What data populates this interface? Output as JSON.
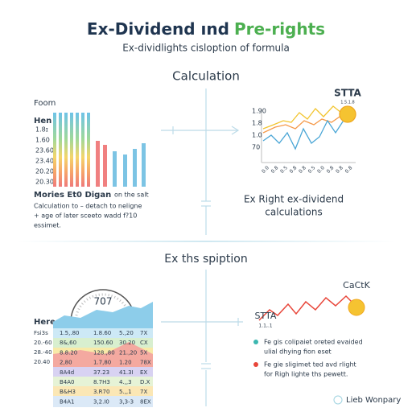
{
  "header": {
    "title_main": "Ex-Dividend ınd",
    "title_accent": "Pre-rights",
    "subtitle": "Ex-dividlights cisloption of formula"
  },
  "section1": {
    "heading": "Calculation",
    "left": {
      "label_top": "Foom",
      "label_head": "Hen",
      "row_labels": [
        "1.8ɪ",
        "1.60",
        "23.60",
        "23.40",
        "20.20",
        "20.30"
      ],
      "caption_bold": "Mories Et0 Digan",
      "caption_tail": "on the salt",
      "caption_lines": [
        "Calculation to – detach to neligne",
        "+ age of later sceeto wadd f?10",
        "essimet."
      ]
    },
    "right": {
      "badge": "STTA",
      "badge_sub": "1.5.1.8",
      "y_labels": [
        "1.90",
        "1.8",
        "1.0",
        "70"
      ],
      "x_labels": [
        "0.0",
        "0.8",
        "0.5",
        "0.8",
        "0.8",
        "0.5",
        "0.0",
        "0.8",
        "0.8",
        "0.8"
      ],
      "caption_lines": [
        "Ex Right ex-dividend",
        "calculations"
      ]
    }
  },
  "section2": {
    "heading": "Ex ths spiption",
    "gauge_value": "707",
    "table_label": "Here",
    "row_labels": [
      "Fsi3s",
      "20.-60",
      "28.-40",
      "20.40"
    ],
    "rows": [
      [
        "1.5,.80",
        "1.8.60",
        "5.,20",
        "7X"
      ],
      [
        "8&,60",
        "150.60",
        "30.20",
        "CX"
      ],
      [
        "8.8.20",
        "128.,80",
        "21.,20",
        "5X"
      ],
      [
        "2,80",
        "1.7,80",
        "1.20",
        "78X"
      ],
      [
        "8A4d",
        "37.23",
        "41.3I",
        "EX"
      ],
      [
        "B4A0",
        "8.7H3",
        "4.,,3",
        "D.X"
      ],
      [
        "B&H3",
        "3.R70",
        "5.,,1",
        "7X"
      ],
      [
        "B4A1",
        "3,2.I0",
        "3,3-3",
        "8EX"
      ]
    ],
    "right_badge": "CaCtK",
    "left_badge": "STTA",
    "left_badge_sub": "1.1,.1",
    "legend": [
      {
        "lines": [
          "Fe gis colipaiet oreted evaided",
          "ulial dhying fion eset"
        ]
      },
      {
        "lines": [
          "Fe gie sligimet ted avd rlight",
          "for Righ lighte ths pewett."
        ]
      }
    ]
  },
  "footer": {
    "brand": "Lieb Wonpary"
  }
}
